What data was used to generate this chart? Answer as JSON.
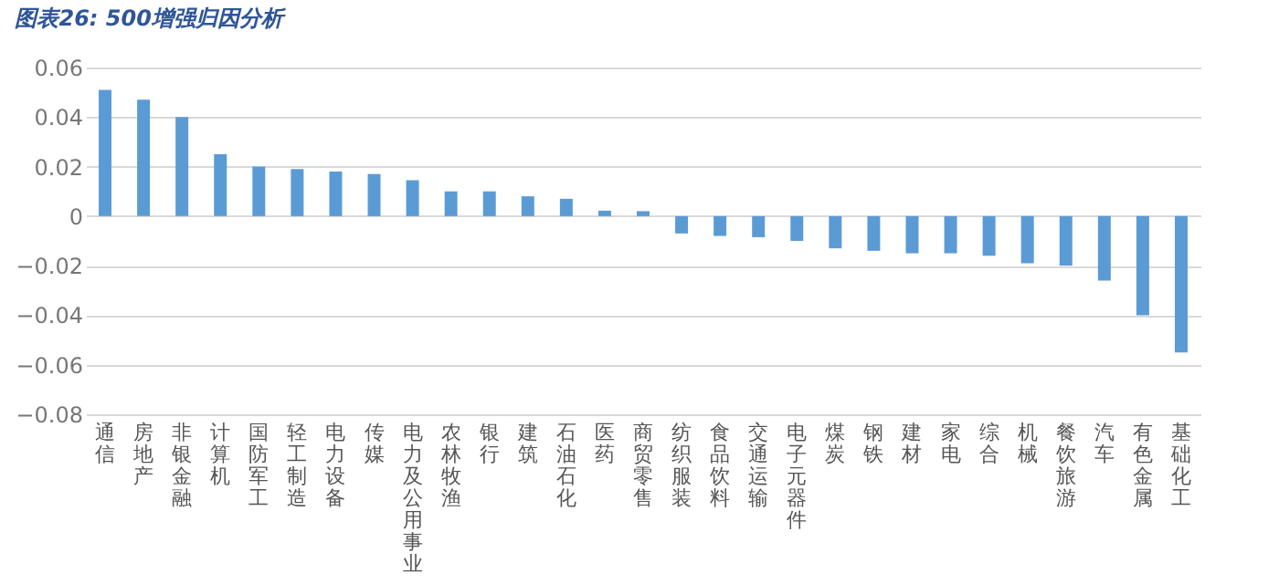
{
  "chart_data": {
    "type": "bar",
    "title": "图表26: 500增强归因分析",
    "categories": [
      "通信",
      "房地产",
      "非银金融",
      "计算机",
      "国防军工",
      "轻工制造",
      "电力设备",
      "传媒",
      "电力及公用事业",
      "农林牧渔",
      "银行",
      "建筑",
      "石油石化",
      "医药",
      "商贸零售",
      "纺织服装",
      "食品饮料",
      "交通运输",
      "电子元器件",
      "煤炭",
      "钢铁",
      "建材",
      "家电",
      "综合",
      "机械",
      "餐饮旅游",
      "汽车",
      "有色金属",
      "基础化工"
    ],
    "values": [
      0.051,
      0.047,
      0.04,
      0.025,
      0.02,
      0.019,
      0.018,
      0.017,
      0.0145,
      0.01,
      0.01,
      0.008,
      0.007,
      0.0022,
      0.002,
      -0.007,
      -0.008,
      -0.0085,
      -0.01,
      -0.013,
      -0.014,
      -0.015,
      -0.015,
      -0.016,
      -0.019,
      -0.02,
      -0.026,
      -0.04,
      -0.055
    ],
    "color": "#5b9bd5",
    "ylim": [
      -0.08,
      0.06
    ],
    "yticks": [
      -0.08,
      -0.06,
      -0.04,
      -0.02,
      0,
      0.02,
      0.04,
      0.06
    ],
    "grid": "y"
  }
}
